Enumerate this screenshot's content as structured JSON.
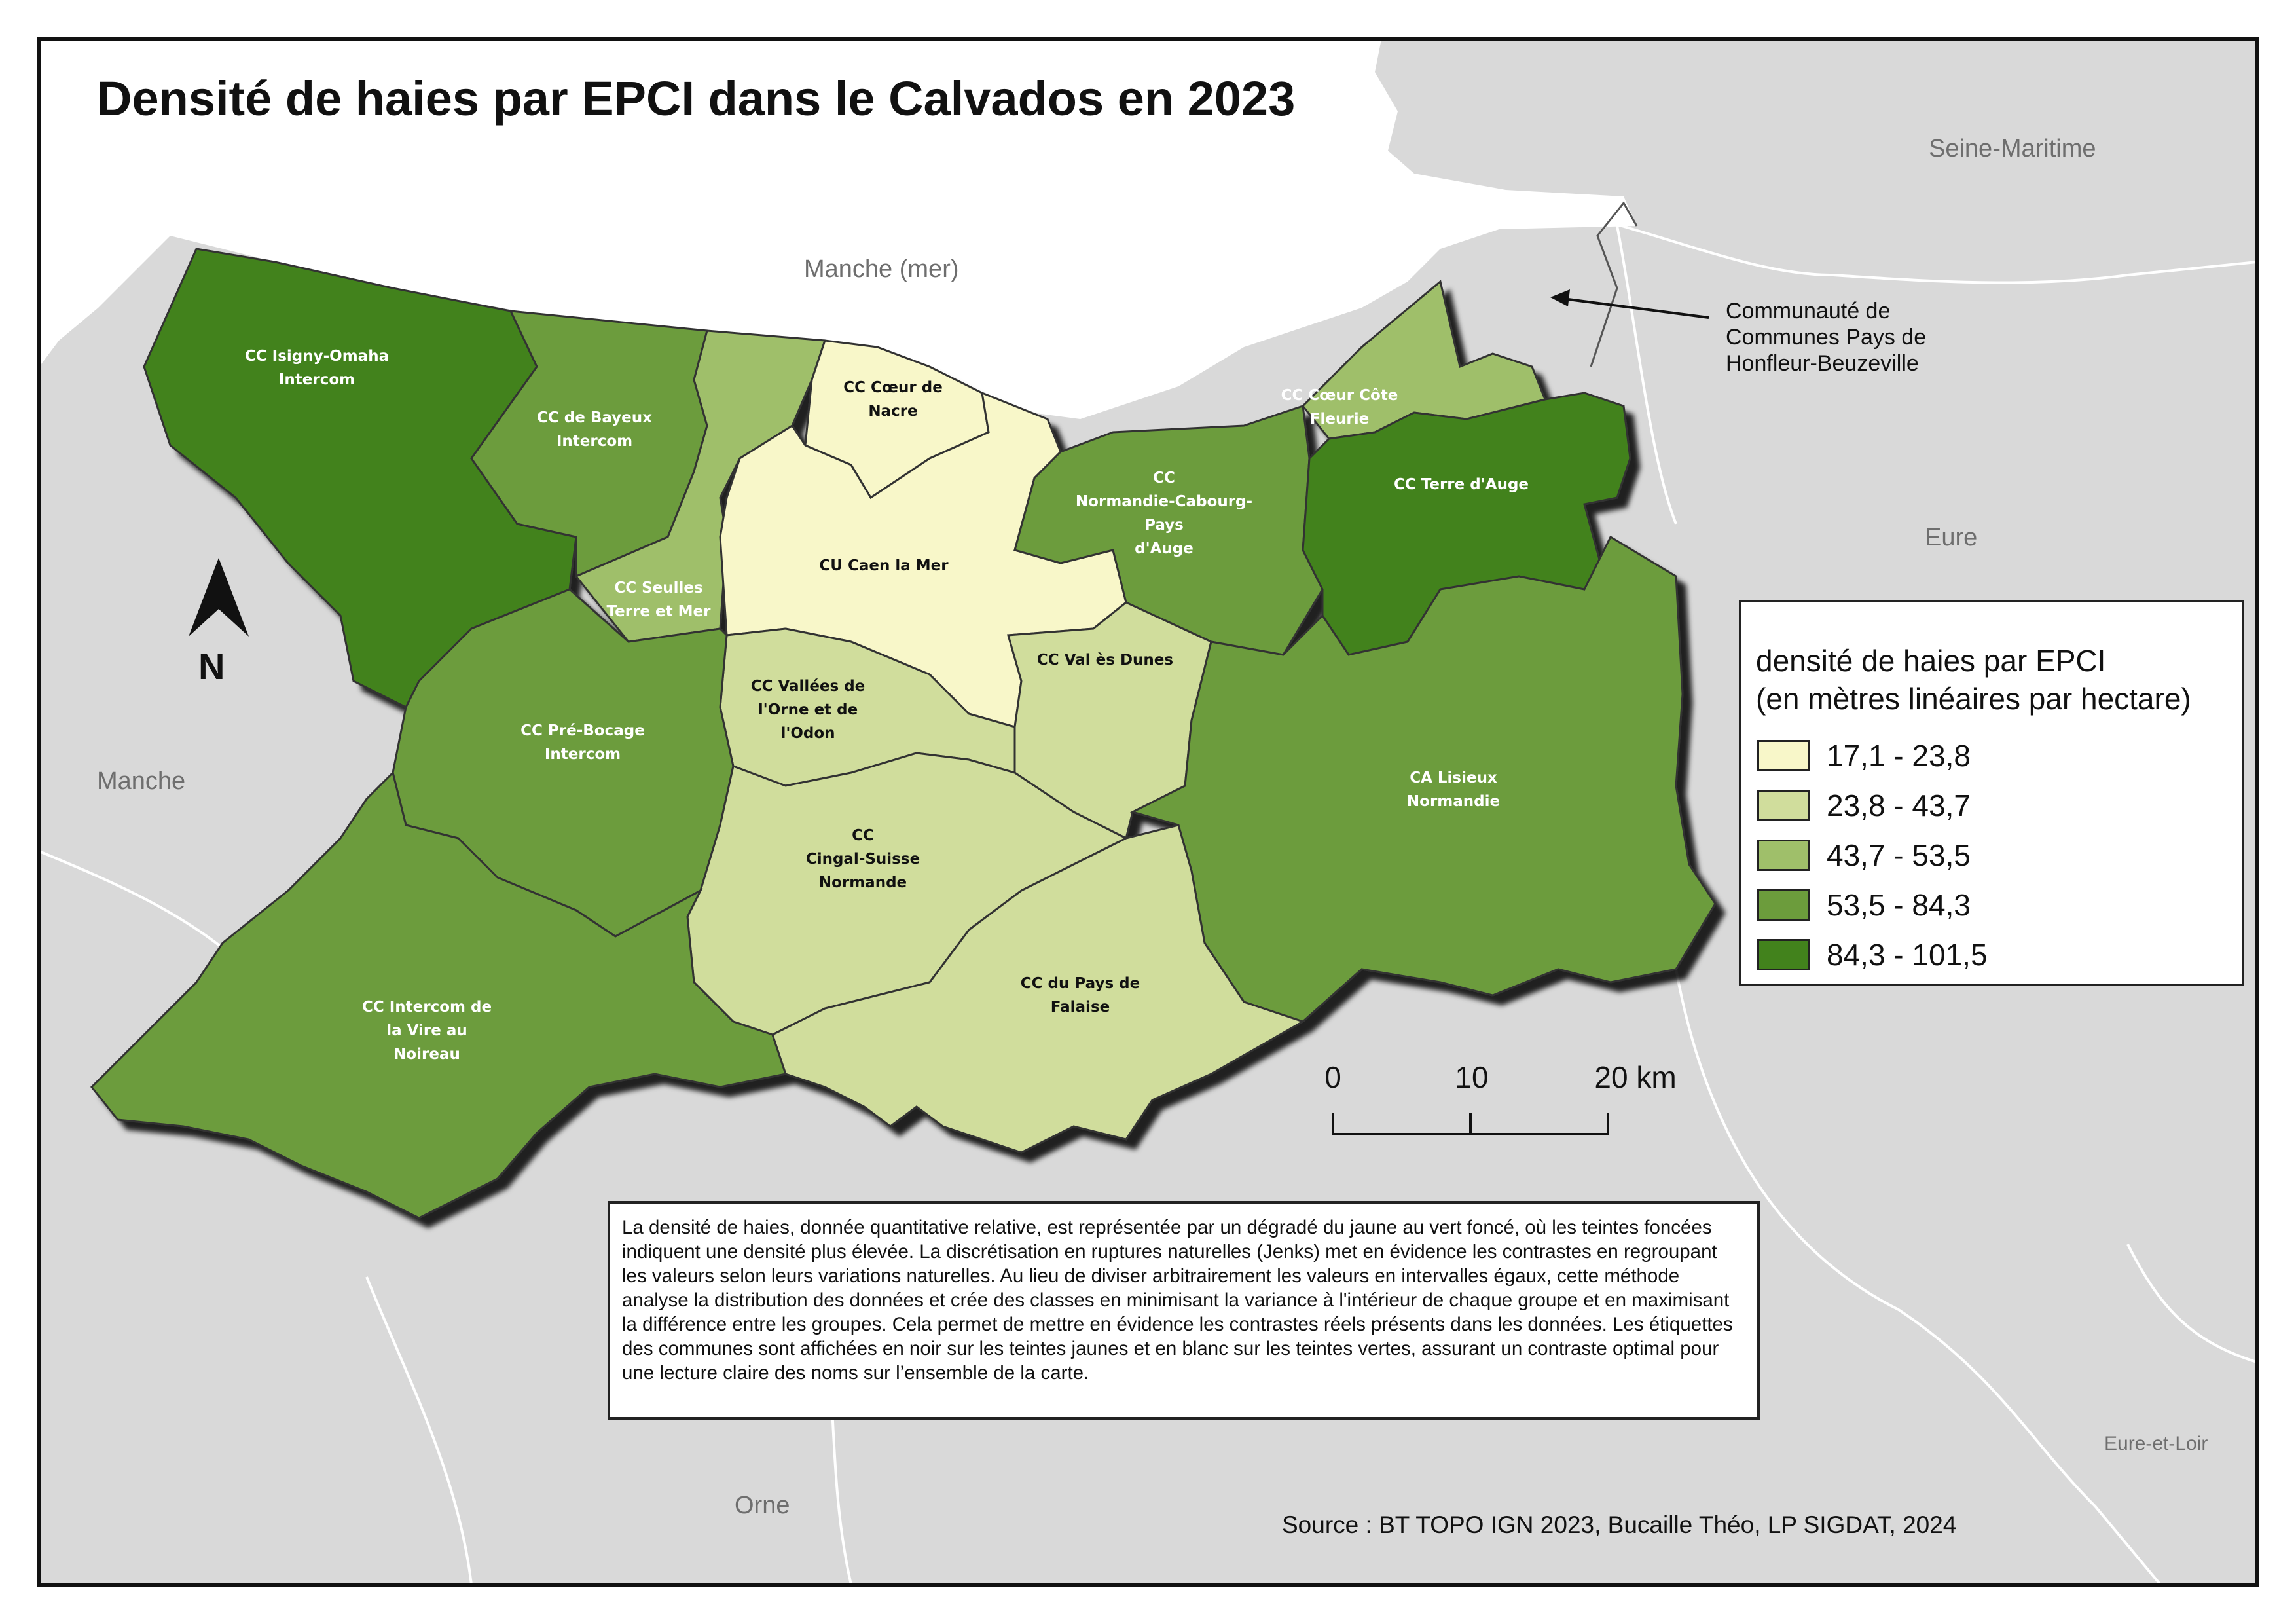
{
  "title": "Densité de haies par EPCI dans le Calvados en 2023",
  "regions": {
    "sea": "Manche (mer)",
    "seine_maritime": "Seine-Maritime",
    "eure": "Eure",
    "manche": "Manche",
    "orne": "Orne",
    "eure_et_loir": "Eure-et-Loir"
  },
  "colors": {
    "class1": "#f8f7c9",
    "class2": "#d0dd9c",
    "class3": "#9fbf6a",
    "class4": "#6c9c3c",
    "class5": "#42821c",
    "neighbour": "#d9d9d9",
    "sea": "#ffffff"
  },
  "epci": [
    {
      "name": "CC Isigny-Omaha Intercom",
      "lines": [
        "CC Isigny-Omaha",
        "Intercom"
      ],
      "density_class": 5
    },
    {
      "name": "CC de Bayeux Intercom",
      "lines": [
        "CC de Bayeux",
        "Intercom"
      ],
      "density_class": 4
    },
    {
      "name": "CC Cœur de Nacre",
      "lines": [
        "CC Cœur de",
        "Nacre"
      ],
      "density_class": 1
    },
    {
      "name": "CC Seulles Terre et Mer",
      "lines": [
        "CC Seulles",
        "Terre et Mer"
      ],
      "density_class": 3
    },
    {
      "name": "CU Caen la Mer",
      "lines": [
        "CU Caen la Mer"
      ],
      "density_class": 1
    },
    {
      "name": "CC Normandie-Cabourg-Pays d'Auge",
      "lines": [
        "CC",
        "Normandie-Cabourg-Pays",
        "d'Auge"
      ],
      "density_class": 4
    },
    {
      "name": "CC Cœur Côte Fleurie",
      "lines": [
        "CC Cœur Côte",
        "Fleurie"
      ],
      "density_class": 3
    },
    {
      "name": "CC Terre d'Auge",
      "lines": [
        "CC Terre d'Auge"
      ],
      "density_class": 5
    },
    {
      "name": "CC Val ès Dunes",
      "lines": [
        "CC Val ès Dunes"
      ],
      "density_class": 2
    },
    {
      "name": "CC Vallées de l'Orne et de l'Odon",
      "lines": [
        "CC Vallées de",
        "l'Orne et de",
        "l'Odon"
      ],
      "density_class": 2
    },
    {
      "name": "CC Pré-Bocage Intercom",
      "lines": [
        "CC Pré-Bocage",
        "Intercom"
      ],
      "density_class": 4
    },
    {
      "name": "CA Lisieux Normandie",
      "lines": [
        "CA Lisieux",
        "Normandie"
      ],
      "density_class": 4
    },
    {
      "name": "CC Cingal-Suisse Normande",
      "lines": [
        "CC",
        "Cingal-Suisse",
        "Normande"
      ],
      "density_class": 2
    },
    {
      "name": "CC Intercom de la Vire au Noireau",
      "lines": [
        "CC Intercom de",
        "la Vire au",
        "Noireau"
      ],
      "density_class": 4
    },
    {
      "name": "CC du Pays de Falaise",
      "lines": [
        "CC du Pays de",
        "Falaise"
      ],
      "density_class": 2
    }
  ],
  "callout": "Communauté de Communes Pays de Honfleur-Beuzeville",
  "legend": {
    "title_line1": "densité de haies par EPCI",
    "title_line2": "(en mètres linéaires par hectare)",
    "classes": [
      "17,1 - 23,8",
      "23,8 - 43,7",
      "43,7 - 53,5",
      "53,5 - 84,3",
      "84,3 - 101,5"
    ]
  },
  "scale": {
    "labels": [
      "0",
      "10",
      "20 km"
    ]
  },
  "north": "N",
  "note": "La densité de haies, donnée quantitative relative, est représentée par un dégradé du jaune au vert foncé, où les teintes foncées indiquent une densité plus élevée. La discrétisation en ruptures naturelles (Jenks) met en évidence les contrastes en regroupant les valeurs selon leurs variations naturelles. Au lieu de diviser arbitrairement les valeurs en intervalles égaux, cette méthode analyse la distribution des données et crée des classes en minimisant la variance à l'intérieur de chaque groupe et en maximisant la différence entre les groupes. Cela permet de mettre en évidence les contrastes réels présents dans les données. Les étiquettes des communes sont affichées en noir sur les teintes jaunes et en blanc sur les teintes vertes, assurant un contraste optimal pour une lecture claire des noms sur l’ensemble de la carte.",
  "source": "Source : BT TOPO IGN 2023, Bucaille Théo, LP SIGDAT, 2024"
}
